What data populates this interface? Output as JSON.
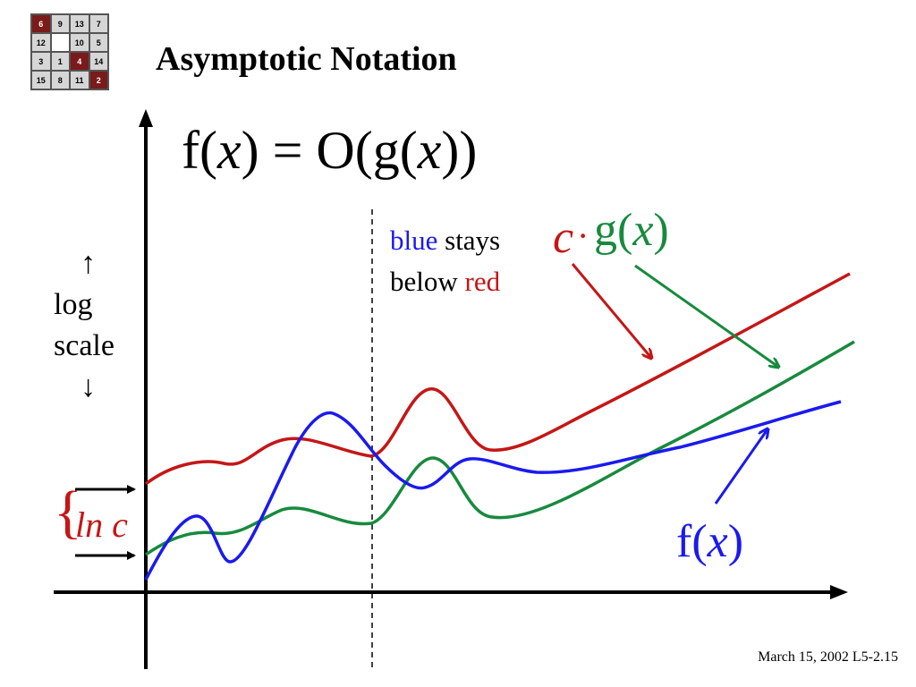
{
  "logo": {
    "tiles": [
      {
        "label": "6",
        "style": "dark"
      },
      {
        "label": "9",
        "style": "light"
      },
      {
        "label": "13",
        "style": "light"
      },
      {
        "label": "7",
        "style": "light"
      },
      {
        "label": "12",
        "style": "light"
      },
      {
        "label": "",
        "style": "blank"
      },
      {
        "label": "10",
        "style": "light"
      },
      {
        "label": "5",
        "style": "light"
      },
      {
        "label": "3",
        "style": "light"
      },
      {
        "label": "1",
        "style": "light"
      },
      {
        "label": "4",
        "style": "dark"
      },
      {
        "label": "14",
        "style": "light"
      },
      {
        "label": "15",
        "style": "light"
      },
      {
        "label": "8",
        "style": "light"
      },
      {
        "label": "11",
        "style": "light"
      },
      {
        "label": "2",
        "style": "dark"
      }
    ]
  },
  "title": "Asymptotic Notation",
  "formula": {
    "f": "f(",
    "x1": "x",
    "mid": ") = O(g(",
    "x2": "x",
    "end": "))"
  },
  "note": {
    "blue_word": "blue",
    "stays": " stays",
    "below": "below ",
    "red_word": "red"
  },
  "labels": {
    "c": "c",
    "cdot": "·",
    "g_prefix": "g(",
    "g_var": "x",
    "g_suffix": ")",
    "f_prefix": "f(",
    "f_var": "x",
    "f_suffix": ")",
    "lnc": "ln c",
    "brace": "{",
    "scale_up": "↑",
    "scale_log": "log",
    "scale_word": "scale",
    "scale_down": "↓"
  },
  "colors": {
    "red": "#c51616",
    "green": "#178a3e",
    "blue": "#1a1aee",
    "axis": "#000000"
  },
  "footer": "March 15, 2002  L5-2.15"
}
